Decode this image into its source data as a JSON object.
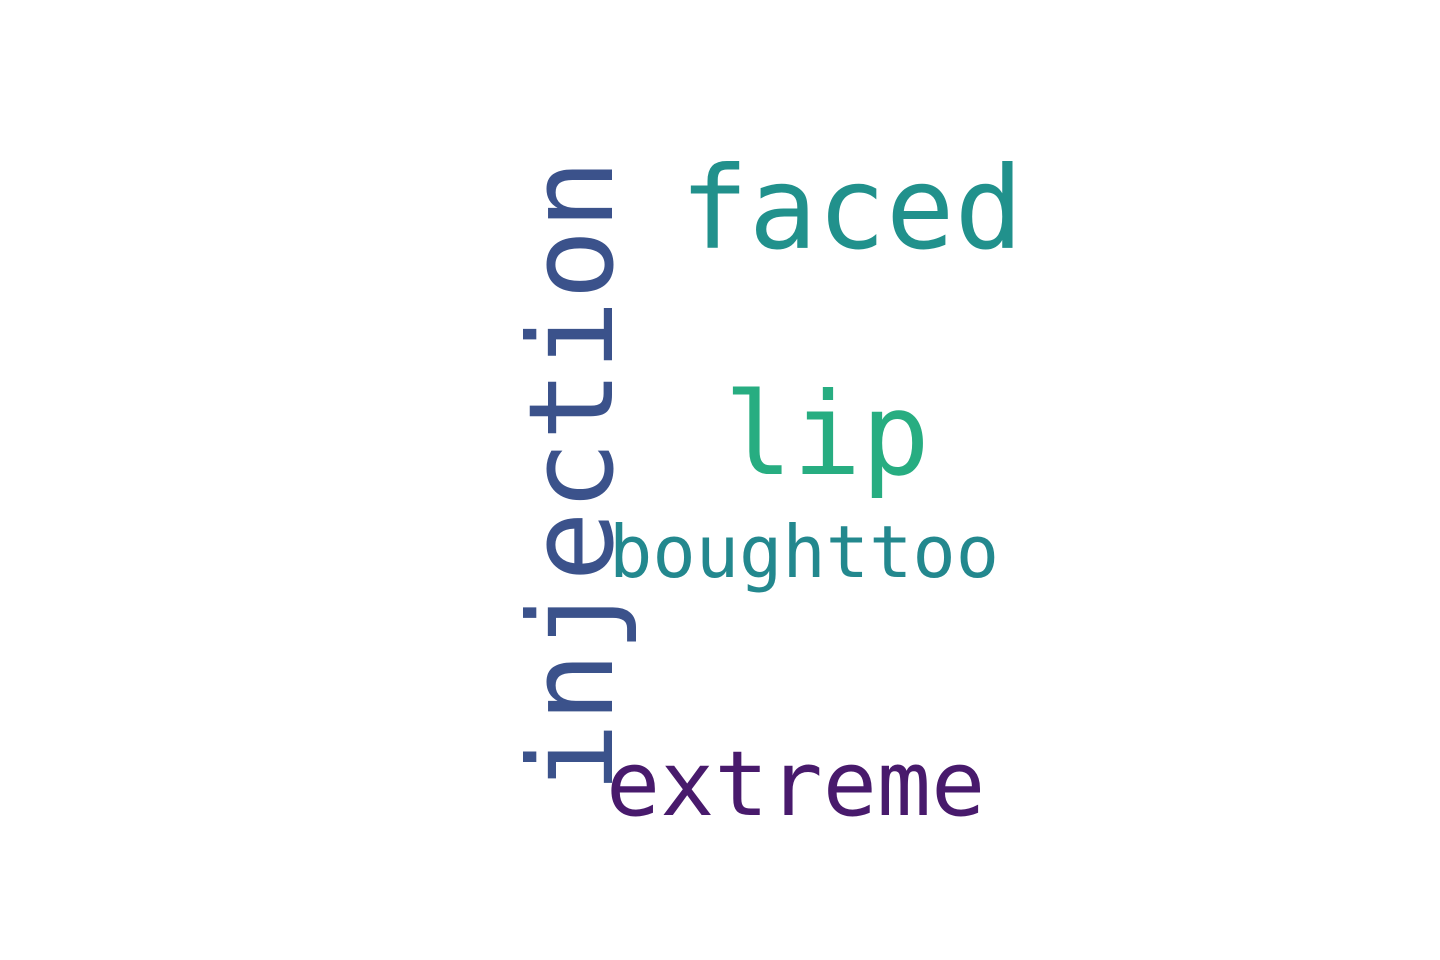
{
  "words": [
    {
      "text": "faced",
      "color": "#21918c",
      "orientation": "horizontal"
    },
    {
      "text": "lip",
      "color": "#27ad81",
      "orientation": "horizontal"
    },
    {
      "text": "boughttoo",
      "color": "#23888e",
      "orientation": "horizontal"
    },
    {
      "text": "extreme",
      "color": "#481a6c",
      "orientation": "horizontal"
    },
    {
      "text": "injection",
      "color": "#3b528b",
      "orientation": "vertical"
    }
  ],
  "colors": {
    "background": "#ffffff"
  }
}
